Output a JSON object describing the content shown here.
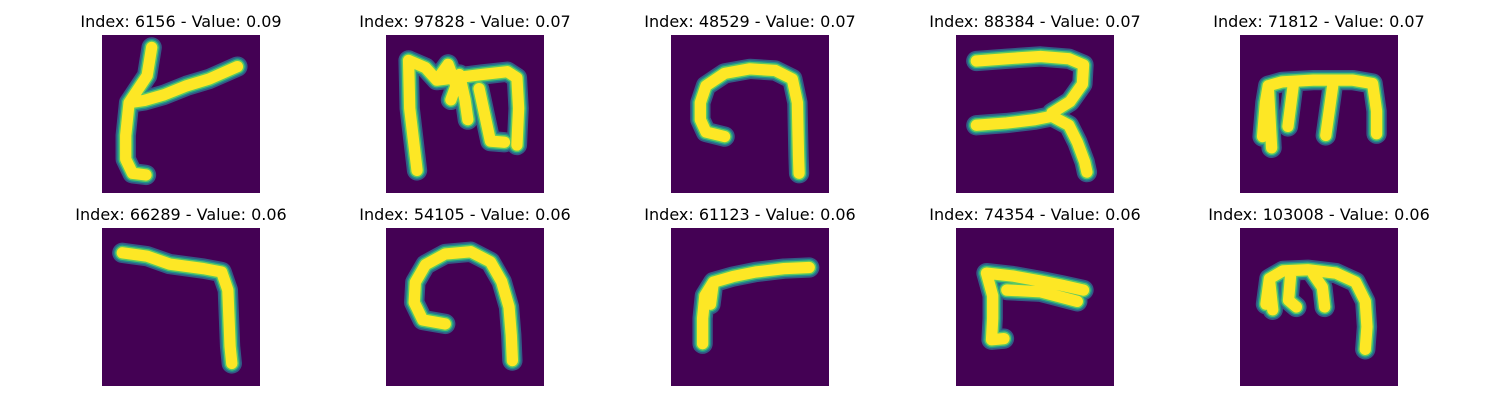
{
  "colors": {
    "background": "#440154",
    "halo": "#21918c",
    "core": "#fde725"
  },
  "panels": [
    {
      "title": "Index: 6156 - Value: 0.09",
      "index": 6156,
      "value": 0.09
    },
    {
      "title": "Index: 97828 - Value: 0.07",
      "index": 97828,
      "value": 0.07
    },
    {
      "title": "Index: 48529 - Value: 0.07",
      "index": 48529,
      "value": 0.07
    },
    {
      "title": "Index: 88384 - Value: 0.07",
      "index": 88384,
      "value": 0.07
    },
    {
      "title": "Index: 71812 - Value: 0.07",
      "index": 71812,
      "value": 0.07
    },
    {
      "title": "Index: 66289 - Value: 0.06",
      "index": 66289,
      "value": 0.06
    },
    {
      "title": "Index: 54105 - Value: 0.06",
      "index": 54105,
      "value": 0.06
    },
    {
      "title": "Index: 61123 - Value: 0.06",
      "index": 61123,
      "value": 0.06
    },
    {
      "title": "Index: 74354 - Value: 0.06",
      "index": 74354,
      "value": 0.06
    },
    {
      "title": "Index: 103008 - Value: 0.06",
      "index": 103008,
      "value": 0.06
    }
  ]
}
